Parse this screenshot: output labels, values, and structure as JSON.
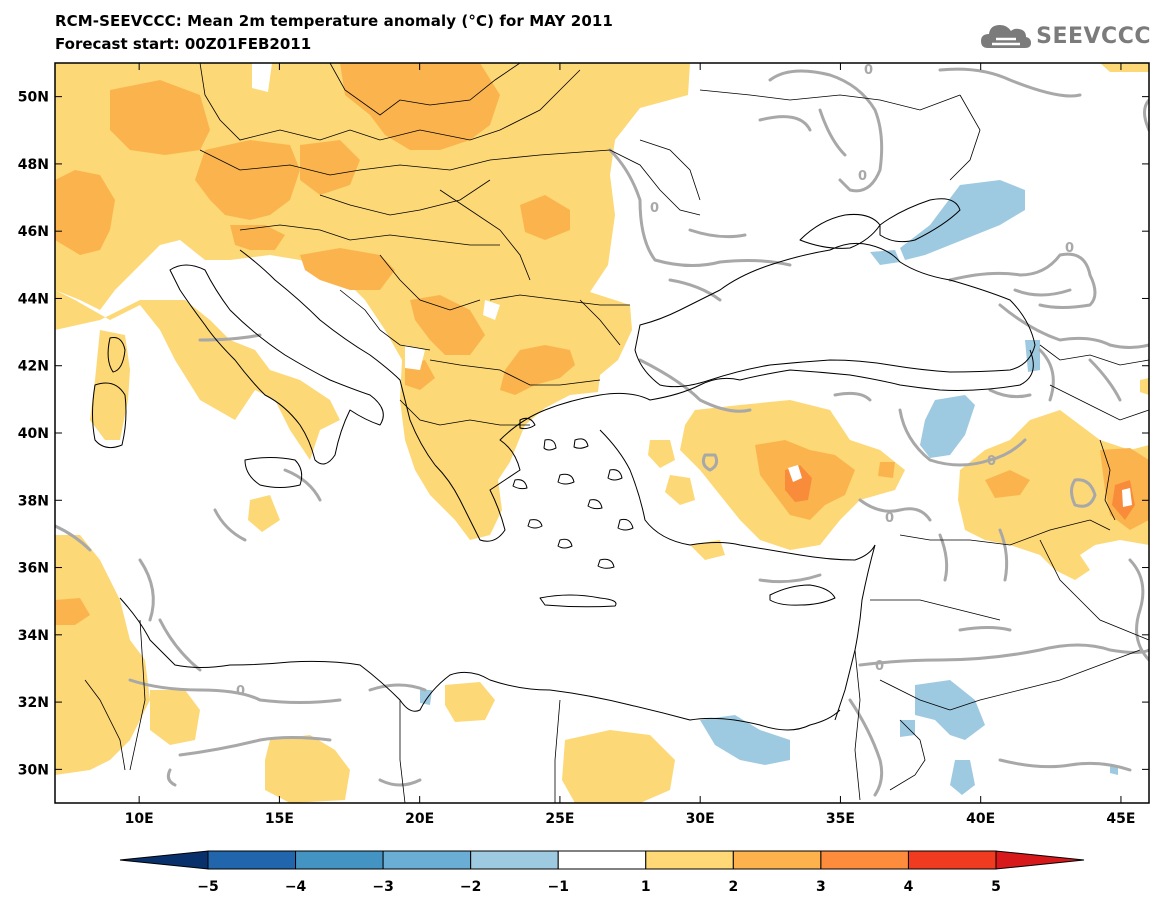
{
  "title": "RCM-SEEVCCC: Mean 2m temperature anomaly (°C) for MAY 2011",
  "subtitle": "Forecast start: 00Z01FEB2011",
  "logo": {
    "text": "SEEVCCC",
    "icon": "cloud-icon"
  },
  "map": {
    "lon_range": [
      7,
      46
    ],
    "lat_range": [
      29,
      51
    ],
    "lon_ticks": [
      {
        "value": 10,
        "label": "10E"
      },
      {
        "value": 15,
        "label": "15E"
      },
      {
        "value": 20,
        "label": "20E"
      },
      {
        "value": 25,
        "label": "25E"
      },
      {
        "value": 30,
        "label": "30E"
      },
      {
        "value": 35,
        "label": "35E"
      },
      {
        "value": 40,
        "label": "40E"
      },
      {
        "value": 45,
        "label": "45E"
      }
    ],
    "lat_ticks": [
      {
        "value": 30,
        "label": "30N"
      },
      {
        "value": 32,
        "label": "32N"
      },
      {
        "value": 34,
        "label": "34N"
      },
      {
        "value": 36,
        "label": "36N"
      },
      {
        "value": 38,
        "label": "38N"
      },
      {
        "value": 40,
        "label": "40N"
      },
      {
        "value": 42,
        "label": "42N"
      },
      {
        "value": 44,
        "label": "44N"
      },
      {
        "value": 46,
        "label": "46N"
      },
      {
        "value": 48,
        "label": "48N"
      },
      {
        "value": 50,
        "label": "50N"
      }
    ],
    "contour_label": "0"
  },
  "colorbar": {
    "labels": [
      "−5",
      "−4",
      "−3",
      "−2",
      "−1",
      "1",
      "2",
      "3",
      "4",
      "5"
    ],
    "low_arrow_color": "#08306b",
    "high_arrow_color": "#d7191c",
    "colors": [
      "#2166ac",
      "#4393c3",
      "#6aaed6",
      "#9ecae1",
      "#ffffff",
      "#fed976",
      "#feb24c",
      "#fd8d3c",
      "#f03b20"
    ]
  },
  "colors": {
    "anomaly_1_2": "#fdd876",
    "anomaly_2_3": "#fbb44d",
    "anomaly_3_4": "#f98c3b",
    "anomaly_neg_1_2": "#9ecae1",
    "contour": "#a8a8a8",
    "border": "#000000"
  }
}
